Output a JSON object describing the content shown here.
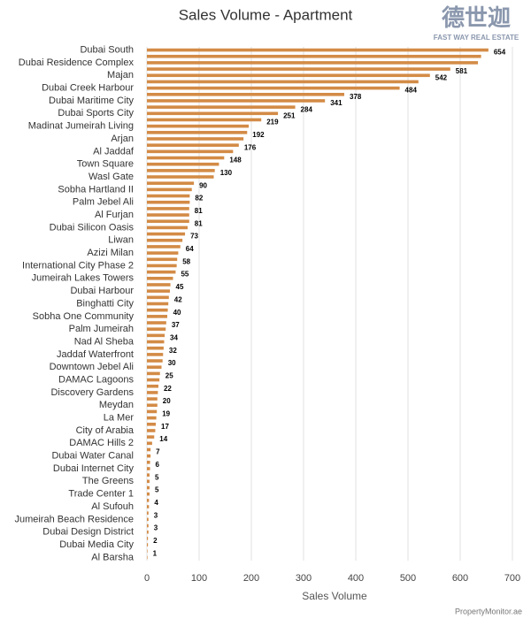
{
  "chart_data": {
    "type": "barh",
    "title": "Sales Volume - Apartment",
    "logo": {
      "text": "德世迦",
      "subtext": "FAST WAY REAL ESTATE"
    },
    "source": "PropertyMonitor.ae",
    "xlabel": "Sales Volume",
    "color": "#d38b46",
    "grid": true,
    "xlim": [
      0,
      700
    ],
    "xticks": [
      0,
      100,
      200,
      300,
      400,
      500,
      600,
      700
    ],
    "categories": [
      "Dubai South",
      null,
      "Dubai Residence Complex",
      null,
      "Majan",
      null,
      "Dubai Creek Harbour",
      null,
      "Dubai Maritime City",
      null,
      "Dubai Sports City",
      null,
      "Madinat Jumeirah Living",
      null,
      "Arjan",
      null,
      "Al Jaddaf",
      null,
      "Town Square",
      null,
      "Wasl Gate",
      null,
      "Sobha Hartland II",
      null,
      "Palm Jebel Ali",
      null,
      "Al Furjan",
      null,
      "Dubai Silicon Oasis",
      null,
      "Liwan",
      null,
      "Azizi Milan",
      null,
      "International City Phase 2",
      null,
      "Jumeirah Lakes Towers",
      null,
      "Dubai Harbour",
      null,
      "Binghatti City",
      null,
      "Sobha One Community",
      null,
      "Palm Jumeirah",
      null,
      "Nad Al Sheba",
      null,
      "Jaddaf Waterfront",
      null,
      "Downtown Jebel Ali",
      null,
      "DAMAC Lagoons",
      null,
      "Discovery Gardens",
      null,
      "Meydan",
      null,
      "La Mer",
      null,
      "City of Arabia",
      null,
      "DAMAC Hills 2",
      null,
      "Dubai Water Canal",
      null,
      "Dubai Internet City",
      null,
      "The Greens",
      null,
      "Trade Center 1",
      null,
      "Al Sufouh",
      null,
      "Jumeirah Beach Residence",
      null,
      "Dubai Design District",
      null,
      "Dubai Media City",
      null,
      "Al Barsha"
    ],
    "values": [
      654,
      640,
      634,
      581,
      542,
      520,
      484,
      378,
      341,
      284,
      251,
      219,
      195,
      192,
      185,
      176,
      165,
      148,
      138,
      130,
      128,
      90,
      86,
      82,
      82,
      81,
      81,
      81,
      78,
      73,
      68,
      64,
      60,
      58,
      57,
      55,
      50,
      45,
      44,
      42,
      41,
      40,
      39,
      37,
      36,
      34,
      33,
      32,
      31,
      30,
      28,
      25,
      24,
      22,
      21,
      20,
      20,
      19,
      18,
      17,
      16,
      14,
      10,
      7,
      7,
      6,
      6,
      5,
      5,
      5,
      5,
      4,
      4,
      3,
      3,
      3,
      3,
      2,
      2,
      1,
      1
    ],
    "value_labels": [
      "654",
      null,
      null,
      "581",
      "542",
      null,
      "484",
      "378",
      "341",
      "284",
      "251",
      "219",
      null,
      "192",
      null,
      "176",
      null,
      "148",
      null,
      "130",
      null,
      "90",
      null,
      "82",
      null,
      "81",
      null,
      "81",
      null,
      "73",
      null,
      "64",
      null,
      "58",
      null,
      "55",
      null,
      "45",
      null,
      "42",
      null,
      "40",
      null,
      "37",
      null,
      "34",
      null,
      "32",
      null,
      "30",
      null,
      "25",
      null,
      "22",
      null,
      "20",
      null,
      "19",
      null,
      "17",
      null,
      "14",
      null,
      "7",
      null,
      "6",
      null,
      "5",
      null,
      "5",
      null,
      "4",
      null,
      "3",
      null,
      "3",
      null,
      "2",
      null,
      "1",
      null
    ]
  }
}
